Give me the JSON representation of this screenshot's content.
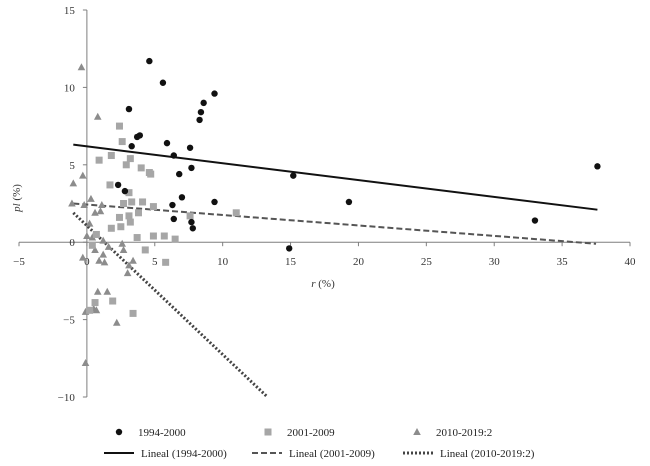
{
  "chart_data": {
    "type": "scatter",
    "title": "",
    "xlabel": {
      "var": "r",
      "unit": "(%)"
    },
    "ylabel": {
      "var": "pl",
      "unit": "(%)"
    },
    "xlim": [
      -5,
      40
    ],
    "ylim": [
      -10,
      15
    ],
    "x_ticks": [
      -5,
      0,
      5,
      10,
      15,
      20,
      25,
      30,
      35,
      40
    ],
    "y_ticks": [
      -10,
      -5,
      0,
      5,
      10,
      15
    ],
    "x_tick_labels": [
      "−5",
      "0",
      "5",
      "10",
      "15",
      "20",
      "25",
      "30",
      "35",
      "40"
    ],
    "y_tick_labels": [
      "−10",
      "−5",
      "0",
      "5",
      "10",
      "15"
    ],
    "grid": false,
    "legend_position": "bottom",
    "series": [
      {
        "name": "1994-2000",
        "marker": "circle",
        "color": "#111111",
        "points": [
          [
            4.6,
            11.7
          ],
          [
            5.6,
            10.3
          ],
          [
            9.4,
            9.6
          ],
          [
            8.6,
            9.0
          ],
          [
            8.4,
            8.4
          ],
          [
            3.1,
            8.6
          ],
          [
            8.3,
            7.9
          ],
          [
            3.7,
            6.8
          ],
          [
            3.9,
            6.9
          ],
          [
            5.9,
            6.4
          ],
          [
            3.3,
            6.2
          ],
          [
            7.6,
            6.1
          ],
          [
            6.4,
            5.6
          ],
          [
            7.7,
            4.8
          ],
          [
            2.3,
            3.7
          ],
          [
            6.8,
            4.4
          ],
          [
            2.8,
            3.3
          ],
          [
            7.0,
            2.9
          ],
          [
            9.4,
            2.6
          ],
          [
            6.3,
            2.4
          ],
          [
            6.4,
            1.5
          ],
          [
            7.7,
            1.3
          ],
          [
            7.8,
            0.9
          ],
          [
            15.2,
            4.3
          ],
          [
            19.3,
            2.6
          ],
          [
            33.0,
            1.4
          ],
          [
            37.6,
            4.9
          ],
          [
            14.9,
            -0.4
          ]
        ]
      },
      {
        "name": "2001-2009",
        "marker": "square",
        "color": "#a6a6a6",
        "points": [
          [
            2.4,
            7.5
          ],
          [
            2.6,
            6.5
          ],
          [
            1.8,
            5.6
          ],
          [
            0.9,
            5.3
          ],
          [
            3.2,
            5.4
          ],
          [
            2.9,
            5.0
          ],
          [
            4.0,
            4.8
          ],
          [
            4.6,
            4.5
          ],
          [
            1.7,
            3.7
          ],
          [
            3.1,
            3.2
          ],
          [
            4.7,
            4.4
          ],
          [
            3.3,
            2.6
          ],
          [
            2.7,
            2.5
          ],
          [
            4.1,
            2.6
          ],
          [
            4.9,
            2.3
          ],
          [
            2.4,
            1.6
          ],
          [
            3.1,
            1.7
          ],
          [
            3.8,
            1.9
          ],
          [
            7.6,
            1.7
          ],
          [
            11.0,
            1.9
          ],
          [
            3.2,
            1.3
          ],
          [
            2.5,
            1.0
          ],
          [
            1.8,
            0.9
          ],
          [
            0.7,
            0.5
          ],
          [
            4.9,
            0.4
          ],
          [
            5.7,
            0.4
          ],
          [
            6.5,
            0.2
          ],
          [
            3.7,
            0.3
          ],
          [
            0.4,
            -0.2
          ],
          [
            4.3,
            -0.5
          ],
          [
            5.8,
            -1.3
          ],
          [
            1.9,
            -3.8
          ],
          [
            0.6,
            -3.9
          ],
          [
            3.4,
            -4.6
          ],
          [
            0.2,
            -4.4
          ]
        ]
      },
      {
        "name": "2010-2019:2",
        "marker": "triangle",
        "color": "#8c8c8c",
        "points": [
          [
            -0.4,
            11.3
          ],
          [
            0.8,
            8.1
          ],
          [
            -1.0,
            3.8
          ],
          [
            -0.3,
            4.3
          ],
          [
            -1.1,
            2.5
          ],
          [
            -0.2,
            2.4
          ],
          [
            0.3,
            2.8
          ],
          [
            0.6,
            1.9
          ],
          [
            1.0,
            2.0
          ],
          [
            1.1,
            2.4
          ],
          [
            0.2,
            1.2
          ],
          [
            0.0,
            0.4
          ],
          [
            0.4,
            0.3
          ],
          [
            1.2,
            0.1
          ],
          [
            1.6,
            -0.3
          ],
          [
            0.6,
            -0.5
          ],
          [
            1.2,
            -0.8
          ],
          [
            0.9,
            -1.2
          ],
          [
            2.6,
            -0.1
          ],
          [
            2.7,
            -0.5
          ],
          [
            1.3,
            -1.3
          ],
          [
            3.1,
            -1.5
          ],
          [
            3.4,
            -1.2
          ],
          [
            3.0,
            -2.0
          ],
          [
            -0.3,
            -1.0
          ],
          [
            0.8,
            -3.2
          ],
          [
            1.5,
            -3.2
          ],
          [
            0.5,
            -4.3
          ],
          [
            0.7,
            -4.4
          ],
          [
            -0.1,
            -4.5
          ],
          [
            2.2,
            -5.2
          ],
          [
            -0.1,
            -7.8
          ]
        ]
      }
    ],
    "trendlines": [
      {
        "name": "Lineal (1994-2000)",
        "style": "solid",
        "color": "#111111",
        "from": [
          -1.0,
          6.3
        ],
        "to": [
          37.6,
          2.1
        ]
      },
      {
        "name": "Lineal (2001-2009)",
        "style": "dashed",
        "color": "#555555",
        "from": [
          -1.0,
          2.5
        ],
        "to": [
          37.5,
          -0.1
        ]
      },
      {
        "name": "Lineal (2010-2019:2)",
        "style": "dotted",
        "color": "#444444",
        "from": [
          -1.0,
          1.9
        ],
        "to": [
          13.3,
          -10.0
        ]
      }
    ]
  }
}
